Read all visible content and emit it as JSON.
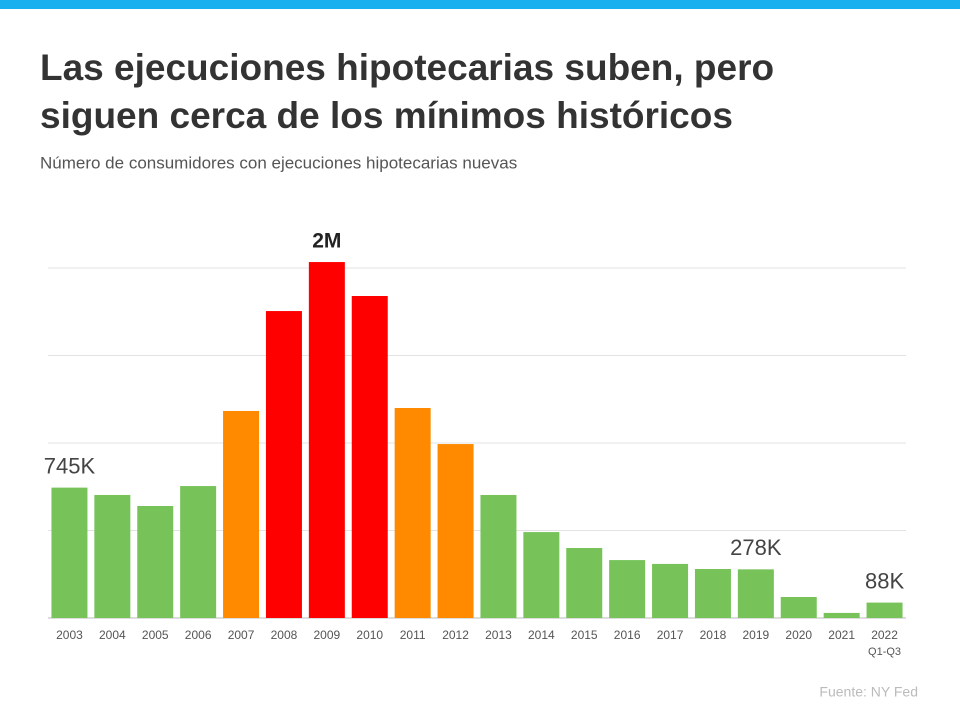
{
  "chart_data": {
    "type": "bar",
    "title": [
      "Las ejecuciones hipotecarias suben, pero",
      "siguen cerca de los mínimos históricos"
    ],
    "subtitle": "Número de consumidores con ejecuciones hipotecarias nuevas",
    "source": "Fuente: NY Fed",
    "categories": [
      "2003",
      "2004",
      "2005",
      "2006",
      "2007",
      "2008",
      "2009",
      "2010",
      "2011",
      "2012",
      "2013",
      "2014",
      "2015",
      "2016",
      "2017",
      "2018",
      "2019",
      "2020",
      "2021",
      "2022"
    ],
    "category_note": "Q1-Q3",
    "values": [
      745000,
      703000,
      640000,
      754000,
      1183000,
      1754000,
      2034000,
      1840000,
      1200000,
      994000,
      703000,
      491000,
      400000,
      331000,
      309000,
      280000,
      278000,
      120000,
      29000,
      88000
    ],
    "value_labels": [
      "745K",
      null,
      null,
      null,
      null,
      null,
      "2M",
      null,
      null,
      null,
      null,
      null,
      null,
      null,
      null,
      null,
      "278K",
      null,
      null,
      "88K"
    ],
    "colors": [
      "#77c35a",
      "#77c35a",
      "#77c35a",
      "#77c35a",
      "#ff8a00",
      "#ff0000",
      "#ff0000",
      "#ff0000",
      "#ff8a00",
      "#ff8a00",
      "#77c35a",
      "#77c35a",
      "#77c35a",
      "#77c35a",
      "#77c35a",
      "#77c35a",
      "#77c35a",
      "#77c35a",
      "#77c35a",
      "#77c35a"
    ],
    "ylim": [
      0,
      2000000
    ],
    "yticks": [
      0,
      500000,
      1000000,
      1500000,
      2000000
    ],
    "grid": true
  }
}
